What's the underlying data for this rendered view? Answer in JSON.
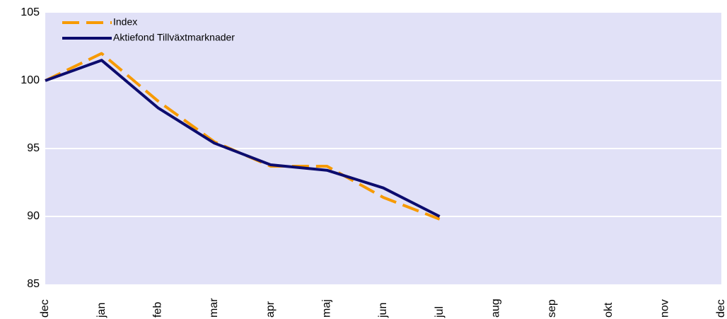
{
  "chart_data": {
    "type": "line",
    "categories": [
      "dec",
      "jan",
      "feb",
      "mar",
      "apr",
      "maj",
      "jun",
      "jul",
      "aug",
      "sep",
      "okt",
      "nov",
      "dec"
    ],
    "series": [
      {
        "name": "Index",
        "color": "#f79a00",
        "dashed": true,
        "values": [
          100,
          102,
          98.5,
          95.5,
          93.7,
          93.7,
          91.4,
          89.8,
          null,
          null,
          null,
          null,
          null
        ]
      },
      {
        "name": "Aktiefond Tillväxtmarknader",
        "color": "#0c0c6e",
        "dashed": false,
        "values": [
          100,
          101.5,
          98,
          95.4,
          93.8,
          93.4,
          92.1,
          90,
          null,
          null,
          null,
          null,
          null
        ]
      }
    ],
    "ylim": [
      85,
      105
    ],
    "yticks": [
      85,
      90,
      95,
      100,
      105
    ],
    "grid": true,
    "legend": "top-left"
  }
}
